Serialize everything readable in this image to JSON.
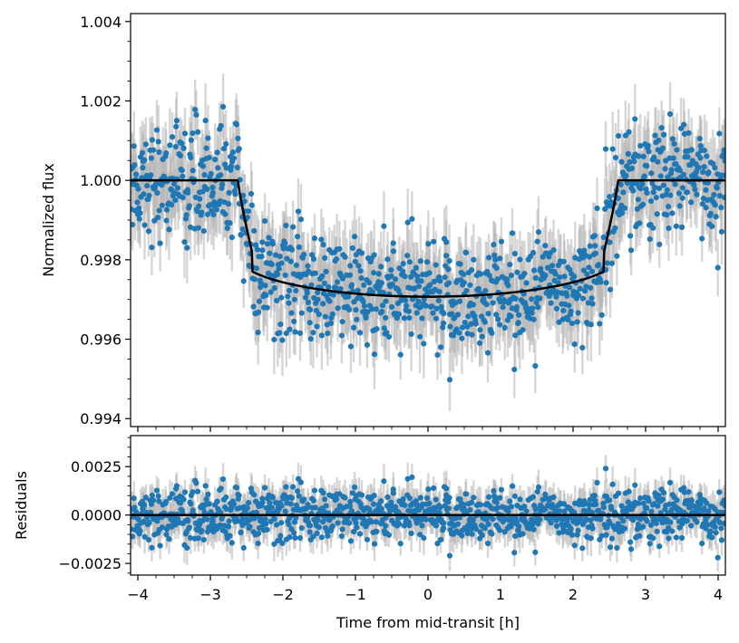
{
  "chart_data": [
    {
      "type": "scatter",
      "name": "transit-light-curve",
      "xlabel": "",
      "ylabel": "Normalized flux",
      "xlim": [
        -4.1,
        4.1
      ],
      "ylim": [
        0.9938,
        1.0042
      ],
      "xticks": [
        -4,
        -3,
        -2,
        -1,
        0,
        1,
        2,
        3,
        4
      ],
      "yticks": [
        0.994,
        0.996,
        0.998,
        1.0,
        1.002,
        1.004
      ],
      "ytick_labels": [
        "0.994",
        "0.996",
        "0.998",
        "1.000",
        "1.002",
        "1.004"
      ],
      "series": [
        {
          "name": "observations",
          "style": "points with error bars",
          "color": "#1f77b4",
          "errorbar_color": "#b5b5b5",
          "n_points": 1100,
          "x_range": [
            -4.1,
            4.1
          ],
          "typical_scatter": 0.0007,
          "typical_error": 0.00075,
          "min_visible_point": {
            "x": 0.3,
            "y": 0.99498
          }
        },
        {
          "name": "transit model",
          "style": "line",
          "color": "#000000",
          "t1": -2.62,
          "t2": -2.42,
          "t3": 2.42,
          "t4": 2.62,
          "baseline": 1.0,
          "depth_at_center": 0.00293,
          "ingress_shoulder_flux": 0.99815,
          "limb_darkening": "quadratic, u1 = 0.35"
        }
      ]
    },
    {
      "type": "scatter",
      "name": "residuals",
      "xlabel": "Time from mid-transit [h]",
      "ylabel": "Residuals",
      "xlim": [
        -4.1,
        4.1
      ],
      "ylim": [
        -0.0031,
        0.0041
      ],
      "xticks": [
        -4,
        -3,
        -2,
        -1,
        0,
        1,
        2,
        3,
        4
      ],
      "xtick_labels": [
        "−4",
        "−3",
        "−2",
        "−1",
        "0",
        "1",
        "2",
        "3",
        "4"
      ],
      "yticks": [
        -0.0025,
        0.0,
        0.0025
      ],
      "ytick_labels": [
        "−0.0025",
        "0.0000",
        "0.0025"
      ],
      "series": [
        {
          "name": "residual points",
          "color": "#1f77b4",
          "n_points": 1100,
          "typical_scatter": 0.0007,
          "max_visible_point": {
            "x": 2.45,
            "y": 0.0024
          }
        },
        {
          "name": "zero line",
          "color": "#000000",
          "y": 0.0
        }
      ]
    }
  ]
}
